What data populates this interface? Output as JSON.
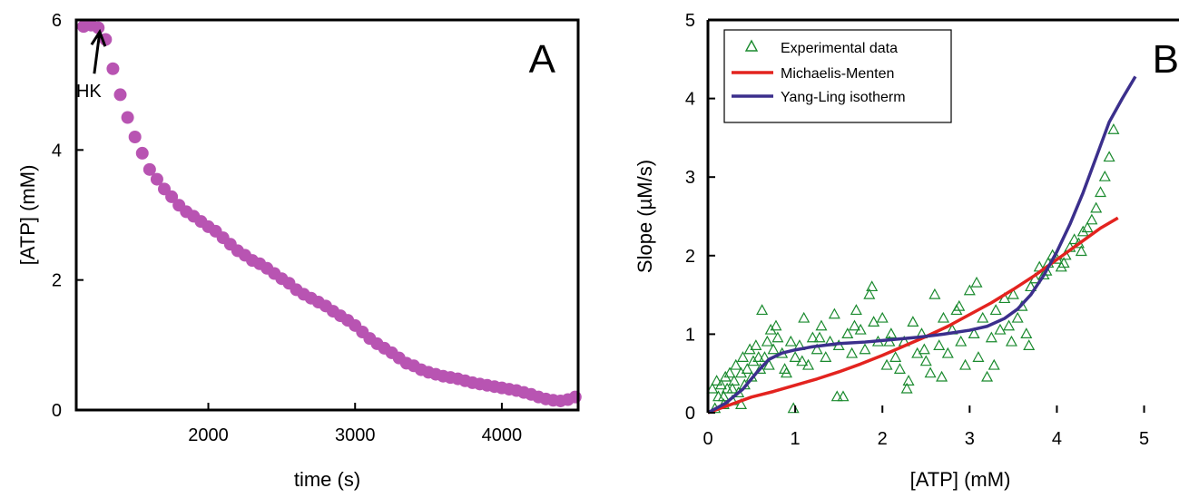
{
  "chart_data": [
    {
      "panel": "A",
      "type": "scatter",
      "xlabel": "time (s)",
      "ylabel": "[ATP]  (mM)",
      "xlim": [
        1100,
        4520
      ],
      "ylim": [
        0,
        6
      ],
      "xticks": [
        "2000",
        "3000",
        "4000"
      ],
      "xtick_values": [
        2000,
        3000,
        4000
      ],
      "yticks": [
        "0",
        "2",
        "4",
        "6"
      ],
      "ytick_values": [
        0,
        2,
        4,
        6
      ],
      "annotation": {
        "text": "HK",
        "x": 1260,
        "y": 5.9
      },
      "series": [
        {
          "color": "#b854b2",
          "x": [
            1150,
            1200,
            1250,
            1300,
            1350,
            1400,
            1450,
            1500,
            1550,
            1600,
            1650,
            1700,
            1750,
            1800,
            1850,
            1900,
            1950,
            2000,
            2050,
            2100,
            2150,
            2200,
            2250,
            2300,
            2350,
            2400,
            2450,
            2500,
            2550,
            2600,
            2650,
            2700,
            2750,
            2800,
            2850,
            2900,
            2950,
            3000,
            3050,
            3100,
            3150,
            3200,
            3250,
            3300,
            3350,
            3400,
            3450,
            3500,
            3550,
            3600,
            3650,
            3700,
            3750,
            3800,
            3850,
            3900,
            3950,
            4000,
            4050,
            4100,
            4150,
            4200,
            4250,
            4300,
            4350,
            4400,
            4450,
            4500
          ],
          "y": [
            5.9,
            5.92,
            5.88,
            5.7,
            5.25,
            4.85,
            4.5,
            4.2,
            3.95,
            3.7,
            3.55,
            3.4,
            3.28,
            3.15,
            3.05,
            2.98,
            2.9,
            2.82,
            2.75,
            2.65,
            2.55,
            2.45,
            2.38,
            2.3,
            2.25,
            2.18,
            2.1,
            2.02,
            1.95,
            1.85,
            1.78,
            1.72,
            1.66,
            1.6,
            1.52,
            1.45,
            1.38,
            1.3,
            1.2,
            1.1,
            1.02,
            0.95,
            0.88,
            0.8,
            0.72,
            0.68,
            0.62,
            0.58,
            0.55,
            0.52,
            0.5,
            0.48,
            0.45,
            0.42,
            0.4,
            0.38,
            0.36,
            0.34,
            0.32,
            0.3,
            0.27,
            0.24,
            0.2,
            0.17,
            0.15,
            0.14,
            0.16,
            0.2
          ]
        }
      ]
    },
    {
      "panel": "B",
      "type": "scatter",
      "xlabel": "[ATP]  (mM)",
      "ylabel": "Slope (µM/s)",
      "xlim": [
        0,
        5.4
      ],
      "ylim": [
        0,
        5
      ],
      "xticks": [
        "0",
        "1",
        "2",
        "3",
        "4",
        "5"
      ],
      "xtick_values": [
        0,
        1,
        2,
        3,
        4,
        5
      ],
      "yticks": [
        "0",
        "1",
        "2",
        "3",
        "4",
        "5"
      ],
      "ytick_values": [
        0,
        1,
        2,
        3,
        4,
        5
      ],
      "legend_position": "top-left",
      "series": [
        {
          "name": "Experimental data",
          "marker": "triangle",
          "color": "#1a8a2e",
          "x": [
            0.05,
            0.1,
            0.12,
            0.15,
            0.18,
            0.2,
            0.22,
            0.25,
            0.28,
            0.3,
            0.32,
            0.35,
            0.38,
            0.4,
            0.42,
            0.45,
            0.48,
            0.5,
            0.52,
            0.55,
            0.6,
            0.62,
            0.65,
            0.7,
            0.72,
            0.75,
            0.8,
            0.85,
            0.9,
            0.95,
            1.0,
            1.05,
            1.1,
            1.15,
            1.2,
            1.25,
            1.3,
            1.35,
            1.4,
            1.45,
            1.5,
            1.55,
            1.6,
            1.65,
            1.7,
            1.75,
            1.8,
            1.85,
            1.9,
            1.95,
            2.0,
            2.05,
            2.1,
            2.15,
            2.2,
            2.25,
            2.3,
            2.35,
            2.4,
            2.45,
            2.5,
            2.55,
            2.6,
            2.65,
            2.7,
            2.75,
            2.8,
            2.85,
            2.9,
            2.95,
            3.0,
            3.05,
            3.1,
            3.15,
            3.2,
            3.25,
            3.3,
            3.35,
            3.4,
            3.45,
            3.5,
            3.55,
            3.6,
            3.65,
            3.7,
            3.75,
            3.8,
            3.85,
            3.9,
            3.95,
            4.0,
            4.05,
            4.1,
            4.15,
            4.2,
            4.25,
            4.3,
            4.35,
            4.4,
            4.45,
            4.5,
            4.55,
            4.6,
            4.65,
            0.08,
            0.18,
            0.28,
            0.38,
            0.58,
            0.68,
            0.78,
            0.88,
            0.98,
            1.08,
            1.28,
            1.48,
            1.68,
            1.88,
            2.08,
            2.28,
            2.48,
            2.68,
            2.88,
            3.08,
            3.28,
            3.48,
            3.68,
            3.88,
            4.08,
            4.28
          ],
          "y": [
            0.3,
            0.4,
            0.2,
            0.35,
            0.1,
            0.45,
            0.3,
            0.5,
            0.15,
            0.4,
            0.6,
            0.25,
            0.5,
            0.7,
            0.35,
            0.55,
            0.8,
            0.45,
            0.65,
            0.85,
            0.55,
            1.3,
            0.7,
            0.6,
            1.05,
            0.8,
            0.95,
            0.75,
            0.5,
            0.9,
            0.7,
            0.85,
            1.2,
            0.6,
            0.95,
            0.8,
            1.1,
            0.7,
            0.9,
            1.25,
            0.85,
            0.2,
            1.0,
            0.75,
            1.3,
            1.05,
            0.8,
            1.5,
            1.15,
            0.9,
            1.2,
            0.6,
            1.0,
            0.7,
            0.55,
            0.9,
            0.4,
            1.15,
            0.75,
            1.0,
            0.65,
            0.5,
            1.5,
            0.85,
            1.2,
            0.75,
            1.05,
            1.3,
            0.9,
            0.6,
            1.55,
            1.0,
            0.7,
            1.2,
            0.45,
            0.95,
            1.3,
            1.05,
            1.45,
            1.1,
            1.5,
            1.2,
            1.35,
            1.0,
            1.6,
            1.7,
            1.85,
            1.75,
            1.9,
            2.0,
            1.95,
            1.85,
            2.0,
            2.1,
            2.2,
            2.15,
            2.3,
            2.35,
            2.45,
            2.6,
            2.8,
            3.0,
            3.25,
            3.6,
            0.05,
            0.2,
            0.3,
            0.1,
            0.7,
            0.9,
            1.1,
            0.55,
            0.05,
            0.65,
            0.95,
            0.2,
            1.1,
            1.6,
            0.9,
            0.3,
            0.8,
            0.45,
            1.35,
            1.65,
            0.6,
            0.9,
            0.85,
            1.8,
            1.9,
            2.05
          ]
        },
        {
          "name": "Michaelis-Menten",
          "type": "line",
          "color": "#e3231f",
          "x": [
            0,
            0.25,
            0.5,
            0.75,
            1.0,
            1.25,
            1.5,
            1.75,
            2.0,
            2.25,
            2.5,
            2.75,
            3.0,
            3.25,
            3.5,
            3.75,
            4.0,
            4.25,
            4.5,
            4.7
          ],
          "y": [
            0,
            0.1,
            0.2,
            0.27,
            0.35,
            0.43,
            0.52,
            0.62,
            0.73,
            0.85,
            0.97,
            1.1,
            1.25,
            1.4,
            1.57,
            1.75,
            1.95,
            2.15,
            2.35,
            2.48
          ]
        },
        {
          "name": "Yang-Ling isotherm",
          "type": "line",
          "color": "#3b2f8c",
          "x": [
            0,
            0.2,
            0.4,
            0.55,
            0.7,
            0.85,
            1.0,
            1.2,
            1.5,
            1.8,
            2.1,
            2.4,
            2.7,
            3.0,
            3.2,
            3.4,
            3.55,
            3.7,
            3.85,
            4.0,
            4.15,
            4.3,
            4.45,
            4.6,
            4.75,
            4.9
          ],
          "y": [
            0,
            0.12,
            0.3,
            0.5,
            0.68,
            0.76,
            0.8,
            0.84,
            0.88,
            0.9,
            0.93,
            0.96,
            1.0,
            1.05,
            1.1,
            1.2,
            1.32,
            1.5,
            1.75,
            2.05,
            2.4,
            2.8,
            3.25,
            3.7,
            4.0,
            4.28
          ]
        }
      ]
    }
  ],
  "panels": {
    "A": {
      "label": "A"
    },
    "B": {
      "label": "B"
    }
  }
}
